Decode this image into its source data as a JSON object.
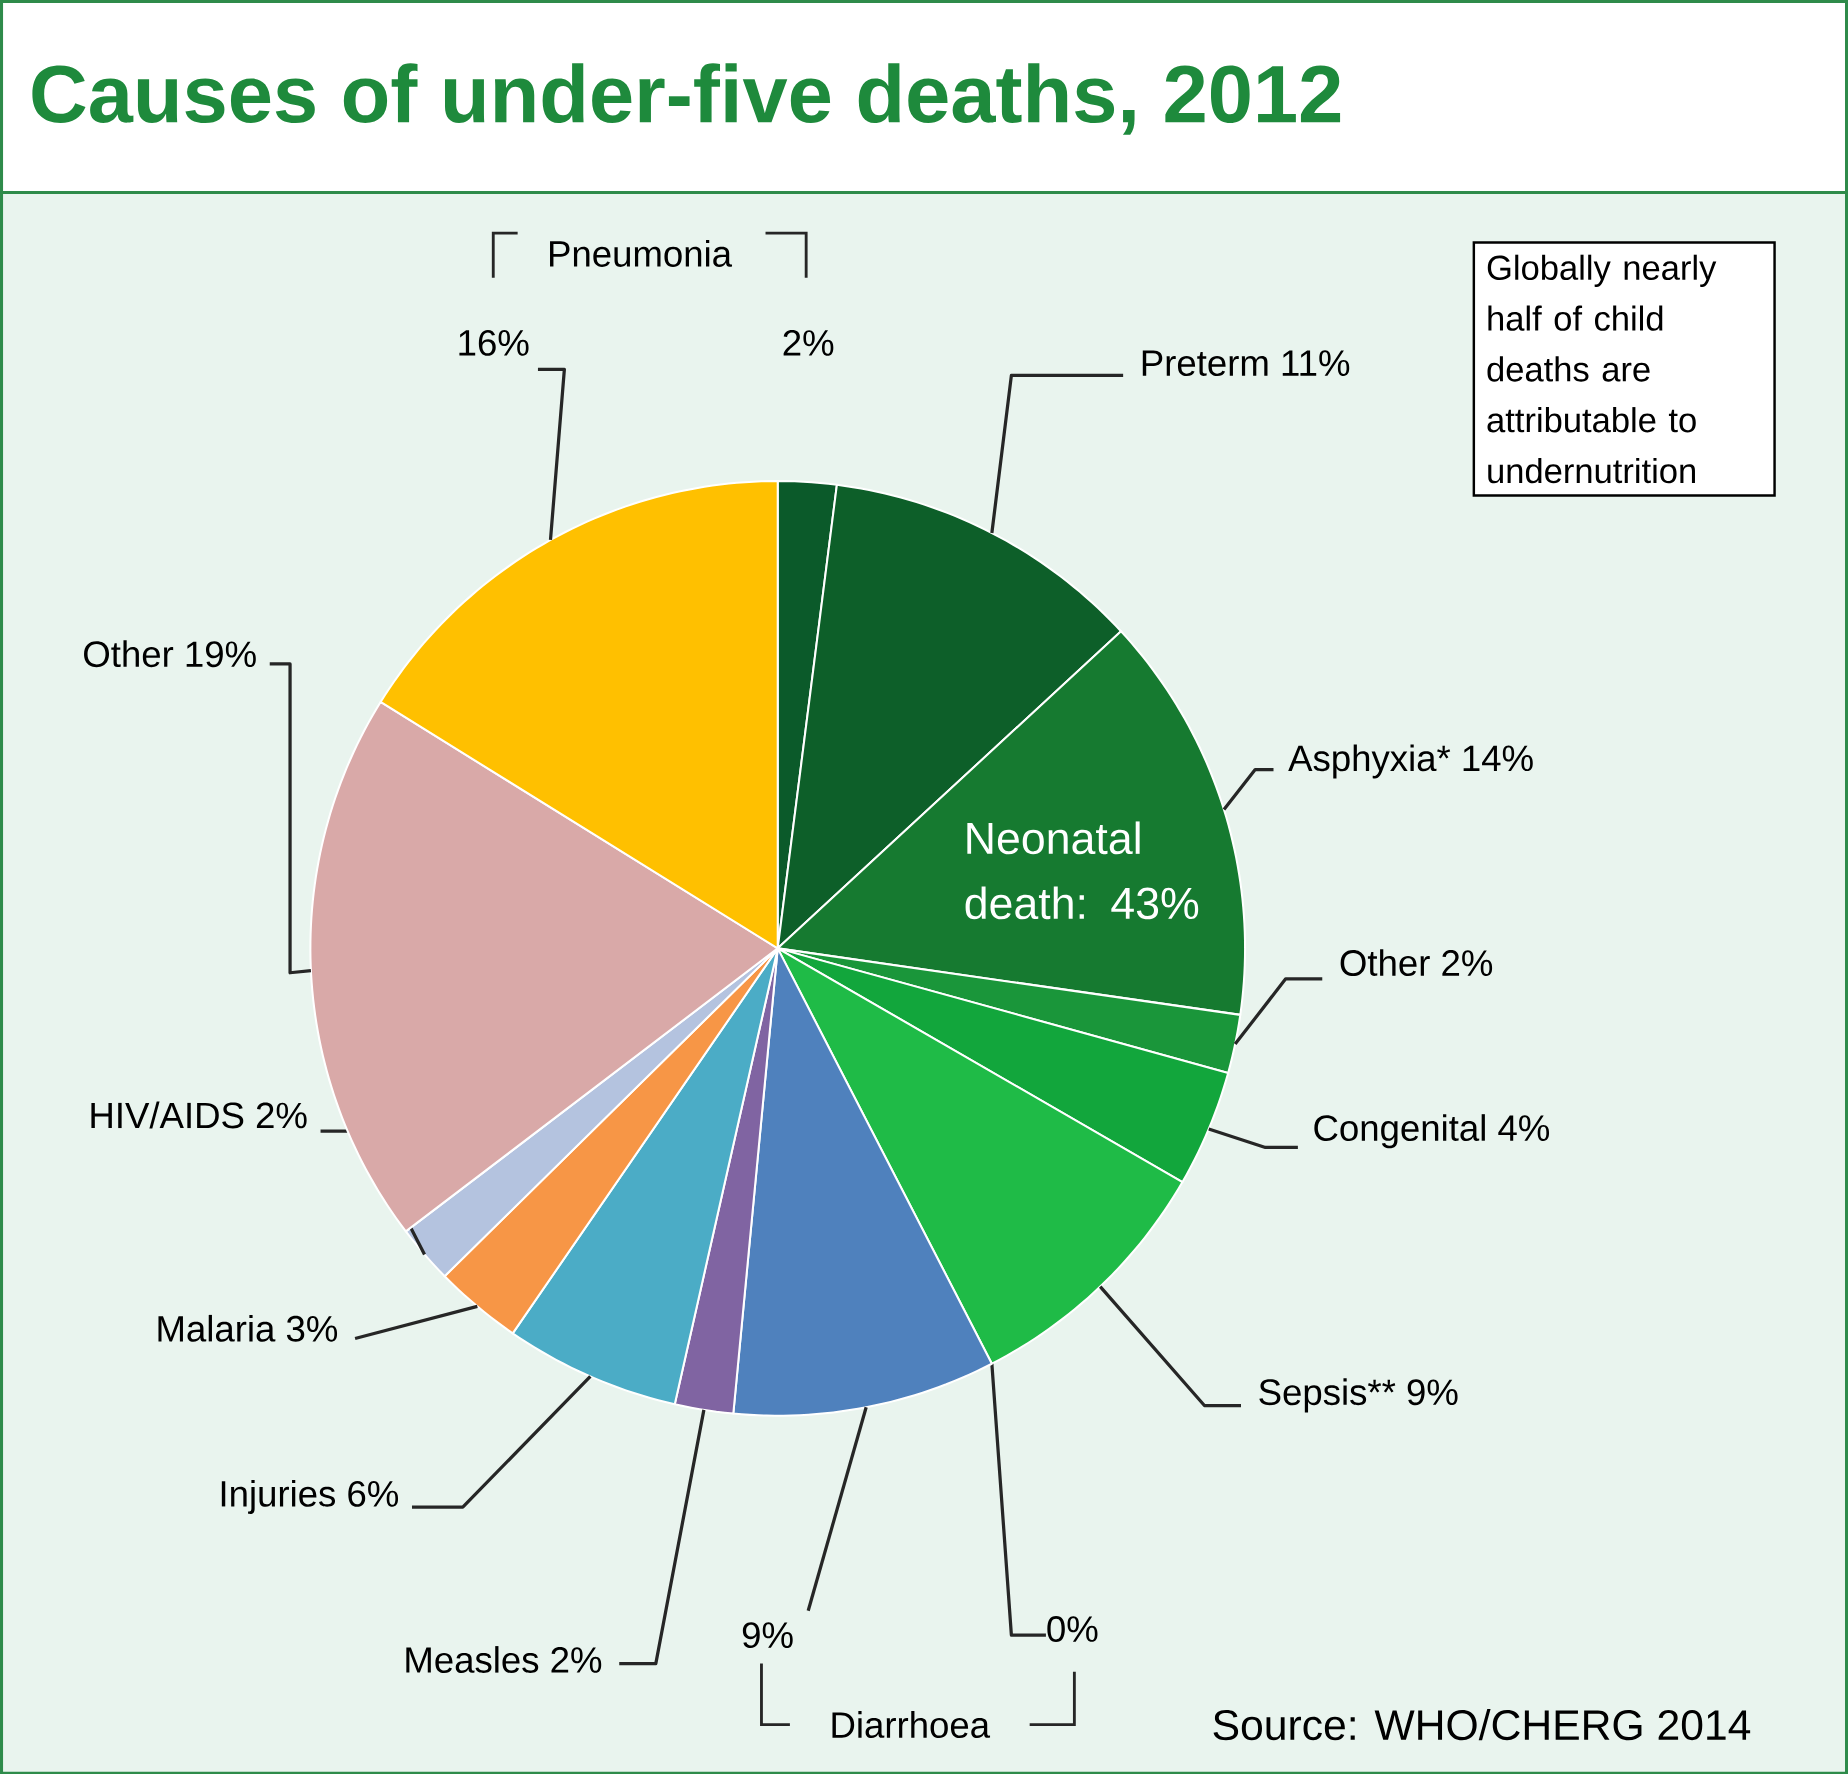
{
  "chart_data": {
    "type": "pie",
    "title": "Causes of under-five deaths, 2012",
    "categories": [
      "2%",
      "Preterm 11%",
      "Asphyxia* 14%",
      "Other 2%",
      "Congenital 4%",
      "Sepsis** 9%",
      "0%",
      "9%",
      "Measles 2%",
      "Injuries 6%",
      "Malaria 3%",
      "HIV/AIDS 2%",
      "Other 19%",
      "16%"
    ],
    "values": [
      2,
      11,
      14,
      2,
      4,
      9,
      0,
      9,
      2,
      6,
      3,
      2,
      19,
      16
    ],
    "colors": [
      "#0b5a2a",
      "#0d5f29",
      "#167a30",
      "#1a963a",
      "#12a63c",
      "#1fbb47",
      "#3cc55a",
      "#4f81bd",
      "#8064a2",
      "#4bacc6",
      "#f79646",
      "#b4c3df",
      "#d9a9a8",
      "#ffc000"
    ],
    "legend": false,
    "annotations": [
      "Pneumonia",
      "Diarrhoea",
      "Neonatal death: 43%",
      "Globally nearly half of child deaths are attributable to undernutrition",
      "Source: WHO/CHERG 2014"
    ]
  }
}
